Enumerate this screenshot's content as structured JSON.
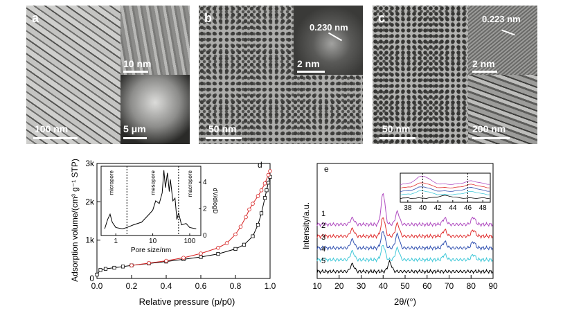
{
  "micrographs": {
    "a": {
      "letter": "a",
      "scale_main": "100 nm",
      "scale_inset_top": "10 nm",
      "scale_inset_bottom": "5 μm"
    },
    "b": {
      "letter": "b",
      "scale_main": "50 nm",
      "lattice": "0.230 nm",
      "scale_inset": "2 nm"
    },
    "c": {
      "letter": "c",
      "scale_main": "50 nm",
      "lattice": "0.223 nm",
      "scale_inset_top": "2 nm",
      "scale_inset_bottom": "200 nm"
    }
  },
  "chart_data": [
    {
      "type": "line",
      "panel_letter": "d",
      "xlabel": "Relative pressure (p/p0)",
      "ylabel": "Adsorption volume/(cm³ g⁻¹ STP)",
      "xlim": [
        0.0,
        1.0
      ],
      "ylim": [
        0,
        3000
      ],
      "x_ticks": [
        "0.0",
        "0.2",
        "0.4",
        "0.6",
        "0.8",
        "1.0"
      ],
      "y_ticks": [
        "0",
        "1k",
        "2k",
        "3k"
      ],
      "grid": false,
      "series": [
        {
          "color": "#000000",
          "marker": "square",
          "x": [
            0.0,
            0.02,
            0.05,
            0.1,
            0.15,
            0.2,
            0.3,
            0.4,
            0.5,
            0.6,
            0.7,
            0.8,
            0.85,
            0.9,
            0.93,
            0.95,
            0.97,
            0.98,
            0.99,
            1.0
          ],
          "values": [
            100,
            220,
            250,
            280,
            310,
            340,
            390,
            440,
            500,
            560,
            640,
            770,
            880,
            1100,
            1400,
            1700,
            2100,
            2300,
            2500,
            2650
          ]
        },
        {
          "color": "#d62020",
          "marker": "circle",
          "x": [
            0.2,
            0.3,
            0.4,
            0.5,
            0.6,
            0.7,
            0.75,
            0.8,
            0.83,
            0.86,
            0.88,
            0.9,
            0.93,
            0.95,
            0.97,
            0.99,
            1.0
          ],
          "values": [
            340,
            400,
            460,
            540,
            650,
            800,
            920,
            1150,
            1350,
            1600,
            1800,
            1950,
            2150,
            2300,
            2480,
            2700,
            2800
          ]
        }
      ],
      "inset": {
        "xlabel": "Pore size/nm",
        "ylabel": "dV/dlogD",
        "x_ticks": [
          "1",
          "10",
          "100"
        ],
        "y_ticks": [
          "0",
          "2",
          "4"
        ],
        "regions": [
          "micropore",
          "mesopore",
          "macropore"
        ],
        "boundaries_nm": [
          2,
          50
        ],
        "x": [
          0.5,
          0.6,
          0.7,
          0.8,
          1,
          1.5,
          2,
          3,
          5,
          8,
          10,
          12,
          15,
          18,
          20,
          22,
          25,
          28,
          30,
          35,
          40,
          45,
          50,
          60,
          80,
          100,
          150
        ],
        "values": [
          0.5,
          1.2,
          1.6,
          1.0,
          0.6,
          0.5,
          0.6,
          0.8,
          1.0,
          1.6,
          1.9,
          2.6,
          2.4,
          3.2,
          4.9,
          3.6,
          4.7,
          3.3,
          4.2,
          2.6,
          2.8,
          1.2,
          1.7,
          0.8,
          0.9,
          0.6,
          0.5
        ]
      }
    },
    {
      "type": "line",
      "panel_letter": "e",
      "xlabel": "2θ/(°)",
      "ylabel": "Intensity/a.u.",
      "xlim": [
        10,
        90
      ],
      "x_ticks": [
        "10",
        "20",
        "30",
        "40",
        "50",
        "60",
        "70",
        "80",
        "90"
      ],
      "grid": false,
      "series": [
        {
          "name": "1",
          "color": "#b04cc0",
          "offset": 4,
          "peaks": [
            [
              26,
              0.6
            ],
            [
              40,
              3.0
            ],
            [
              46.5,
              1.2
            ],
            [
              68,
              0.6
            ],
            [
              81,
              0.7
            ]
          ]
        },
        {
          "name": "2",
          "color": "#e03030",
          "offset": 3,
          "peaks": [
            [
              26,
              0.7
            ],
            [
              40,
              1.8
            ],
            [
              46.5,
              1.2
            ],
            [
              68,
              0.6
            ],
            [
              81,
              0.6
            ]
          ]
        },
        {
          "name": "3",
          "color": "#3050b0",
          "offset": 2,
          "peaks": [
            [
              26,
              0.8
            ],
            [
              40,
              1.6
            ],
            [
              46.5,
              1.3
            ],
            [
              68,
              0.6
            ],
            [
              81,
              0.6
            ]
          ]
        },
        {
          "name": "4",
          "color": "#40c8d8",
          "offset": 1,
          "peaks": [
            [
              26,
              0.8
            ],
            [
              40,
              1.4
            ],
            [
              46.5,
              1.1
            ],
            [
              68,
              0.5
            ],
            [
              81,
              0.5
            ]
          ]
        },
        {
          "name": "5",
          "color": "#000000",
          "offset": 0,
          "peaks": [
            [
              26,
              0.7
            ],
            [
              43,
              0.9
            ]
          ]
        }
      ],
      "inset": {
        "x_ticks": [
          "38",
          "40",
          "42",
          "44",
          "46",
          "48"
        ],
        "xlim": [
          37,
          49
        ],
        "dashed_lines": [
          40,
          46
        ]
      }
    }
  ]
}
